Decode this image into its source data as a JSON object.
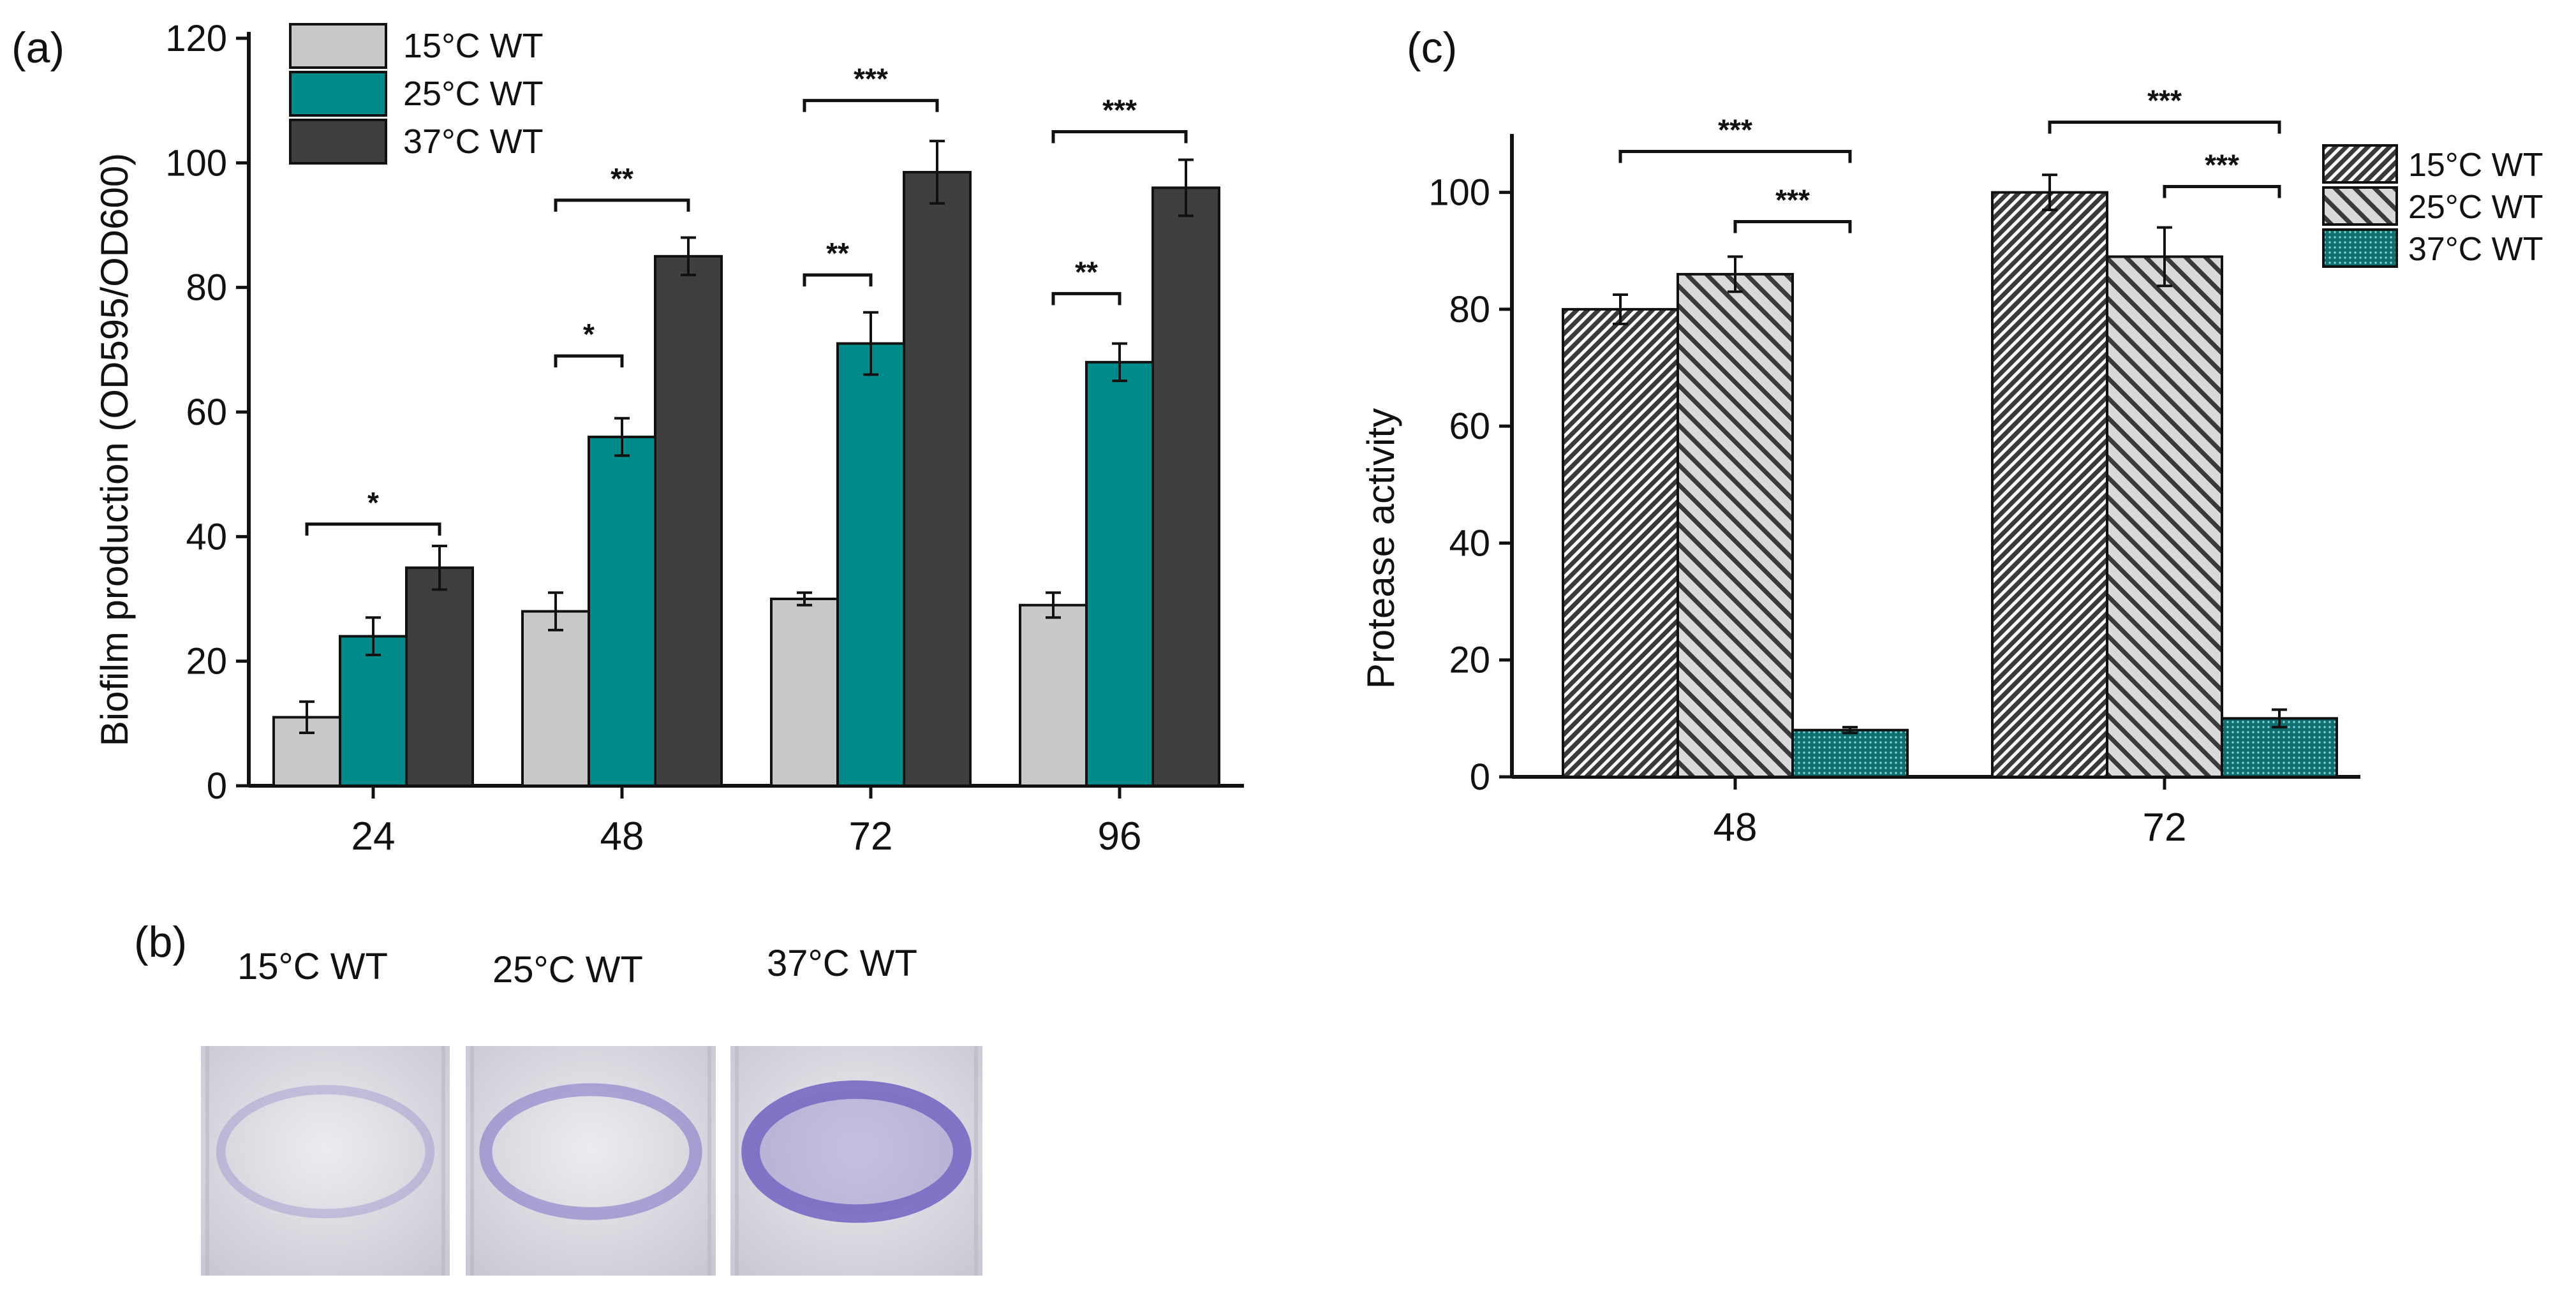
{
  "panels": {
    "a": "(a)",
    "b": "(b)",
    "c": "(c)"
  },
  "colors": {
    "c15": "#c8c8c8",
    "c25": "#008b8b",
    "c37": "#3f3f3f",
    "stain": "#7c6fc4",
    "well_bg": "#dcdce2"
  },
  "chart_data": [
    {
      "type": "bar",
      "panel": "(a)",
      "title": "",
      "xlabel": "",
      "ylabel": "Biofilm production (OD595/OD600)",
      "ylim": [
        0,
        120
      ],
      "yticks": [
        0,
        20,
        40,
        60,
        80,
        100,
        120
      ],
      "categories": [
        "24",
        "48",
        "72",
        "96"
      ],
      "legend_position": "top-left",
      "series": [
        {
          "name": "15°C WT",
          "values": [
            11,
            28,
            30,
            29
          ],
          "errors": [
            2.5,
            3,
            1,
            2
          ],
          "fill": "solid-light-gray"
        },
        {
          "name": "25°C WT",
          "values": [
            24,
            56,
            71,
            68
          ],
          "errors": [
            3,
            3,
            5,
            3
          ],
          "fill": "solid-teal"
        },
        {
          "name": "37°C WT",
          "values": [
            35,
            85,
            98.5,
            96
          ],
          "errors": [
            3.5,
            3,
            5,
            4.5
          ],
          "fill": "solid-dark-gray"
        }
      ],
      "significance": [
        {
          "group": 0,
          "from": 0,
          "to": 2,
          "label": "*",
          "y": 42
        },
        {
          "group": 1,
          "from": 0,
          "to": 1,
          "label": "*",
          "y": 69
        },
        {
          "group": 1,
          "from": 0,
          "to": 2,
          "label": "**",
          "y": 94
        },
        {
          "group": 2,
          "from": 0,
          "to": 1,
          "label": "**",
          "y": 82
        },
        {
          "group": 2,
          "from": 0,
          "to": 2,
          "label": "***",
          "y": 110
        },
        {
          "group": 3,
          "from": 0,
          "to": 1,
          "label": "**",
          "y": 79
        },
        {
          "group": 3,
          "from": 0,
          "to": 2,
          "label": "***",
          "y": 105
        }
      ]
    },
    {
      "type": "bar",
      "panel": "(c)",
      "title": "",
      "xlabel": "",
      "ylabel": "Protease activity",
      "ylim": [
        0,
        110
      ],
      "yticks": [
        0,
        20,
        40,
        60,
        80,
        100
      ],
      "categories": [
        "48",
        "72"
      ],
      "legend_position": "top-right",
      "series": [
        {
          "name": "15°C WT",
          "values": [
            80,
            100
          ],
          "errors": [
            2.5,
            3
          ],
          "fill": "dense-diagonal-hatch"
        },
        {
          "name": "25°C WT",
          "values": [
            86,
            89
          ],
          "errors": [
            3,
            5
          ],
          "fill": "sparse-diagonal-hatch"
        },
        {
          "name": "37°C WT",
          "values": [
            8,
            10
          ],
          "errors": [
            0.5,
            1.5
          ],
          "fill": "dotted-teal"
        }
      ],
      "significance": [
        {
          "group": 0,
          "from": 0,
          "to": 2,
          "label": "***",
          "y": 107
        },
        {
          "group": 0,
          "from": 1,
          "to": 2,
          "label": "***",
          "y": 95
        },
        {
          "group": 1,
          "from": 0,
          "to": 2,
          "label": "***",
          "y": 112
        },
        {
          "group": 1,
          "from": 1,
          "to": 2,
          "label": "***",
          "y": 101
        }
      ]
    }
  ],
  "wells": {
    "labels": [
      "15°C WT",
      "25°C WT",
      "37°C WT"
    ],
    "stain_levels": [
      0.3,
      0.55,
      0.95
    ]
  }
}
